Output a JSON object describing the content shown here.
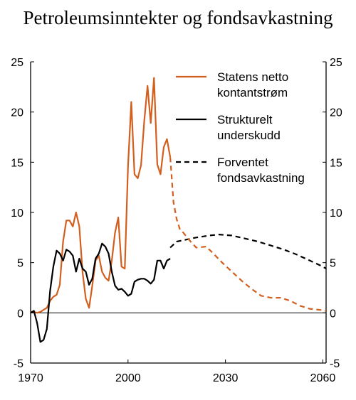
{
  "chart_data": {
    "type": "line",
    "title": "Petroleumsinntekter og fondsavkastning",
    "xlim": [
      1970,
      2061
    ],
    "ylim": [
      -5,
      25
    ],
    "x_ticks": [
      1970,
      2000,
      2030,
      2060
    ],
    "y_ticks": [
      -5,
      0,
      5,
      10,
      15,
      20,
      25
    ],
    "right_axis_ticks": [
      -5,
      0,
      5,
      10,
      15,
      20,
      25
    ],
    "grid": false,
    "legend_position": "top-right",
    "series": [
      {
        "name": "Statens netto kontantstrøm",
        "color": "#d35f1e",
        "style": "solid",
        "points": [
          [
            1970,
            0.1
          ],
          [
            1971,
            0.1
          ],
          [
            1972,
            0.0
          ],
          [
            1973,
            0.1
          ],
          [
            1974,
            0.3
          ],
          [
            1975,
            0.5
          ],
          [
            1976,
            1.2
          ],
          [
            1977,
            1.6
          ],
          [
            1978,
            1.8
          ],
          [
            1979,
            2.8
          ],
          [
            1980,
            7.1
          ],
          [
            1981,
            9.2
          ],
          [
            1982,
            9.2
          ],
          [
            1983,
            8.6
          ],
          [
            1984,
            10.0
          ],
          [
            1985,
            8.6
          ],
          [
            1986,
            4.0
          ],
          [
            1987,
            1.4
          ],
          [
            1988,
            0.5
          ],
          [
            1989,
            2.7
          ],
          [
            1990,
            5.2
          ],
          [
            1991,
            5.7
          ],
          [
            1992,
            4.1
          ],
          [
            1993,
            3.5
          ],
          [
            1994,
            3.2
          ],
          [
            1995,
            5.2
          ],
          [
            1996,
            8.0
          ],
          [
            1997,
            9.5
          ],
          [
            1998,
            4.6
          ],
          [
            1999,
            4.4
          ],
          [
            2000,
            14.6
          ],
          [
            2001,
            21.0
          ],
          [
            2002,
            13.8
          ],
          [
            2003,
            13.4
          ],
          [
            2004,
            14.7
          ],
          [
            2005,
            19.1
          ],
          [
            2006,
            22.6
          ],
          [
            2007,
            18.9
          ],
          [
            2008,
            23.4
          ],
          [
            2009,
            14.8
          ],
          [
            2010,
            13.8
          ],
          [
            2011,
            16.5
          ],
          [
            2012,
            17.3
          ],
          [
            2013,
            15.5
          ]
        ]
      },
      {
        "name": "Strukturelt underskudd",
        "color": "#000000",
        "style": "solid",
        "points": [
          [
            1970,
            0.0
          ],
          [
            1971,
            0.2
          ],
          [
            1972,
            -1.0
          ],
          [
            1973,
            -2.9
          ],
          [
            1974,
            -2.7
          ],
          [
            1975,
            -1.6
          ],
          [
            1976,
            2.2
          ],
          [
            1977,
            4.6
          ],
          [
            1978,
            6.2
          ],
          [
            1979,
            5.9
          ],
          [
            1980,
            5.2
          ],
          [
            1981,
            6.3
          ],
          [
            1982,
            6.1
          ],
          [
            1983,
            5.7
          ],
          [
            1984,
            4.1
          ],
          [
            1985,
            5.4
          ],
          [
            1986,
            4.4
          ],
          [
            1987,
            4.1
          ],
          [
            1988,
            2.8
          ],
          [
            1989,
            3.4
          ],
          [
            1990,
            5.4
          ],
          [
            1991,
            5.9
          ],
          [
            1992,
            6.9
          ],
          [
            1993,
            6.6
          ],
          [
            1994,
            5.9
          ],
          [
            1995,
            4.1
          ],
          [
            1996,
            2.7
          ],
          [
            1997,
            2.3
          ],
          [
            1998,
            2.4
          ],
          [
            1999,
            2.1
          ],
          [
            2000,
            1.7
          ],
          [
            2001,
            1.9
          ],
          [
            2002,
            3.1
          ],
          [
            2003,
            3.3
          ],
          [
            2004,
            3.4
          ],
          [
            2005,
            3.4
          ],
          [
            2006,
            3.2
          ],
          [
            2007,
            2.9
          ],
          [
            2008,
            3.3
          ],
          [
            2009,
            5.2
          ],
          [
            2010,
            5.2
          ],
          [
            2011,
            4.4
          ],
          [
            2012,
            5.2
          ],
          [
            2013,
            5.4
          ]
        ]
      },
      {
        "name": "Forventet fondsavkastning",
        "color": "#000000",
        "style": "dashed",
        "points": [
          [
            2013,
            6.5
          ],
          [
            2015,
            7.1
          ],
          [
            2018,
            7.3
          ],
          [
            2021,
            7.5
          ],
          [
            2025,
            7.7
          ],
          [
            2028,
            7.8
          ],
          [
            2032,
            7.7
          ],
          [
            2036,
            7.4
          ],
          [
            2040,
            7.1
          ],
          [
            2044,
            6.7
          ],
          [
            2048,
            6.3
          ],
          [
            2052,
            5.8
          ],
          [
            2056,
            5.2
          ],
          [
            2060,
            4.6
          ],
          [
            2061,
            4.4
          ]
        ]
      },
      {
        "name": "",
        "color": "#d35f1e",
        "style": "dashed",
        "points": [
          [
            2013,
            15.5
          ],
          [
            2014,
            11.0
          ],
          [
            2015,
            9.3
          ],
          [
            2016,
            8.3
          ],
          [
            2017,
            8.0
          ],
          [
            2019,
            7.2
          ],
          [
            2021,
            6.5
          ],
          [
            2024,
            6.6
          ],
          [
            2026,
            6.0
          ],
          [
            2029,
            5.0
          ],
          [
            2032,
            4.1
          ],
          [
            2035,
            3.2
          ],
          [
            2038,
            2.4
          ],
          [
            2041,
            1.7
          ],
          [
            2044,
            1.5
          ],
          [
            2047,
            1.5
          ],
          [
            2050,
            1.2
          ],
          [
            2053,
            0.7
          ],
          [
            2056,
            0.4
          ],
          [
            2059,
            0.3
          ],
          [
            2061,
            0.2
          ]
        ]
      }
    ],
    "legend": [
      {
        "line1": "Statens netto",
        "line2": "kontantstrøm",
        "color": "#d35f1e",
        "style": "solid"
      },
      {
        "line1": "Strukturelt",
        "line2": "underskudd",
        "color": "#000000",
        "style": "solid"
      },
      {
        "line1": "Forventet",
        "line2": "fondsavkastning",
        "color": "#000000",
        "style": "dashed"
      }
    ]
  }
}
